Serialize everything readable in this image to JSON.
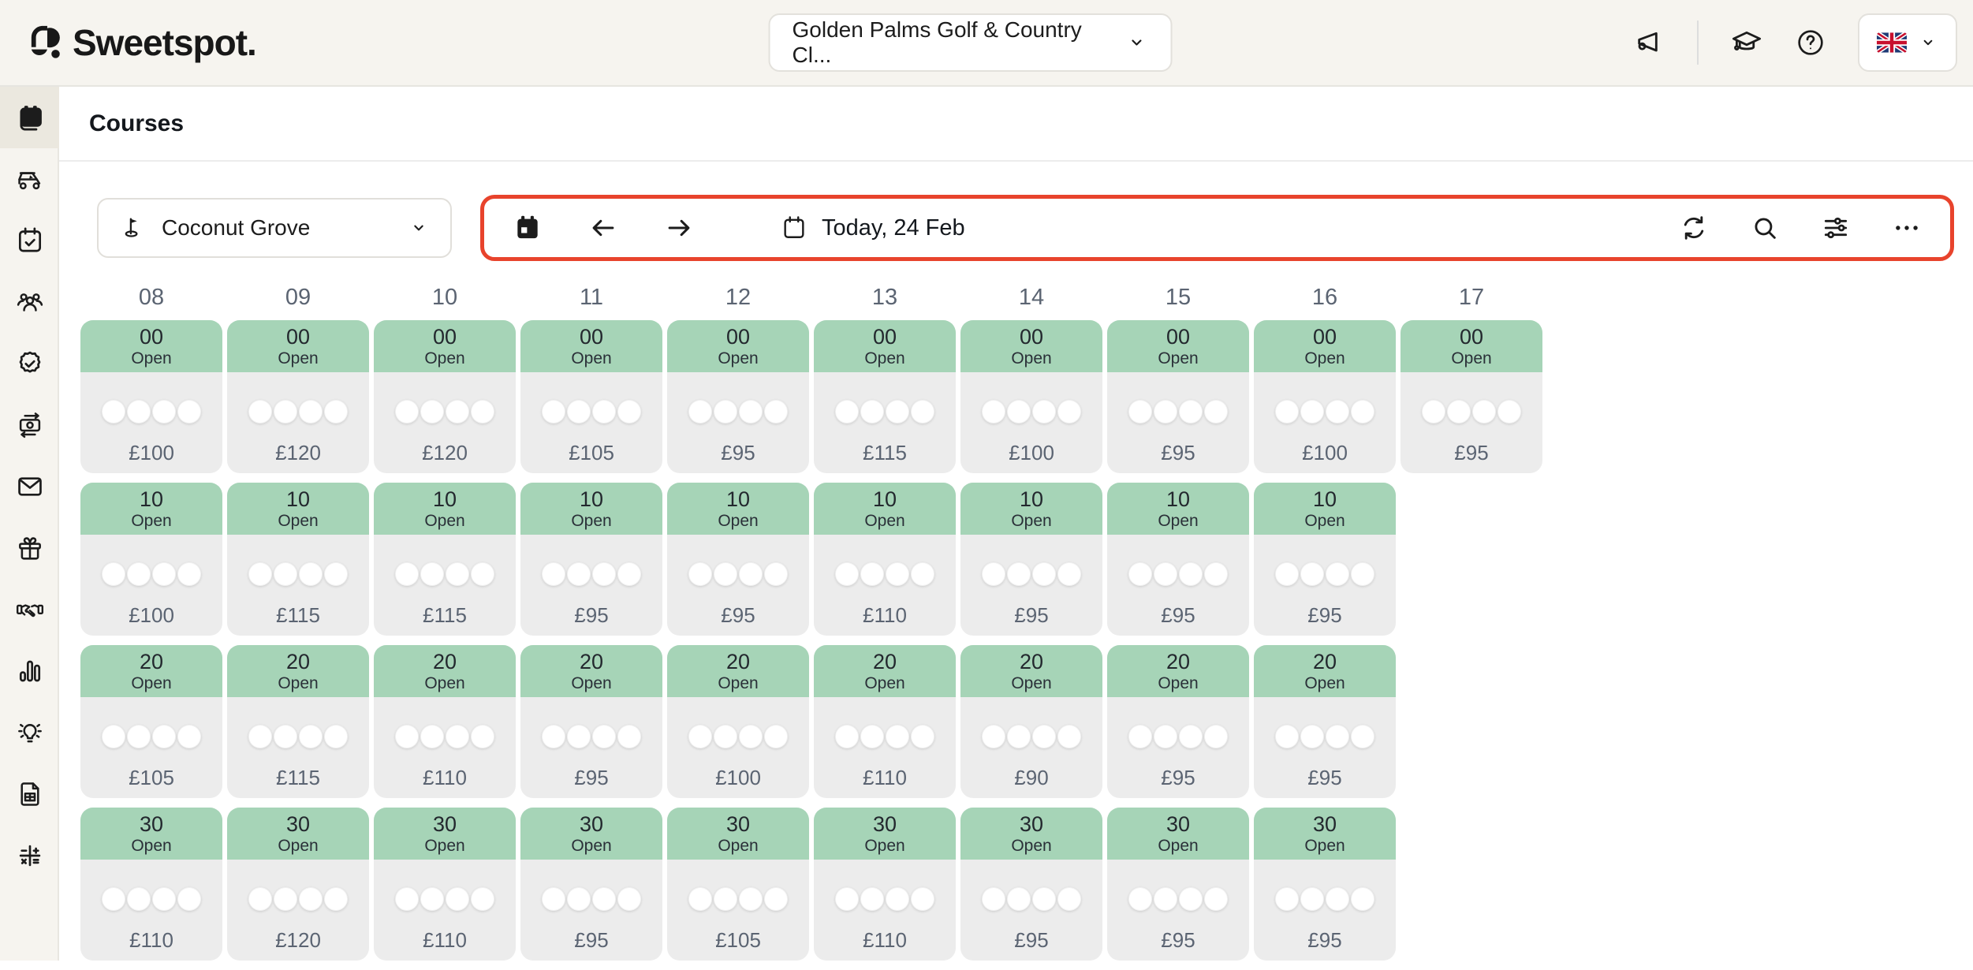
{
  "brand": {
    "logo_text": "Sweetspot."
  },
  "header": {
    "club_selector": {
      "value": "Golden Palms Golf & Country Cl..."
    },
    "icons": [
      "megaphone-icon",
      "education-icon",
      "help-icon"
    ],
    "language": {
      "flag": "united-kingdom"
    }
  },
  "sidebar": {
    "active_item": "tee-sheet",
    "items": [
      "tee-sheet-calendar-icon",
      "golf-cart-icon",
      "calendar-check-icon",
      "members-icon",
      "badge-check-icon",
      "payments-icon",
      "mail-icon",
      "gift-icon",
      "partnership-icon",
      "statistics-icon",
      "insights-icon",
      "reports-icon",
      "accounting-icon"
    ]
  },
  "page": {
    "title": "Courses"
  },
  "toolbar": {
    "course_selector": {
      "value": "Coconut Grove"
    },
    "date_label": "Today, 24 Feb",
    "right_icons": [
      "refresh-icon",
      "search-icon",
      "filters-icon",
      "more-icon"
    ],
    "highlight_color": "#e8432c"
  },
  "colors": {
    "topbar_bg": "#f6f4ef",
    "active_sidebar_bg": "#ebe8df",
    "slot_header_green": "#a6d4b7",
    "slot_body_gray": "#ececec",
    "muted_text": "#5b6472",
    "annotation_red": "#e8432c"
  },
  "tee_sheet": {
    "player_slots_per_tee": 4,
    "columns": [
      {
        "hour": "08",
        "slots": [
          {
            "minute": "00",
            "status": "Open",
            "price": "£100"
          },
          {
            "minute": "10",
            "status": "Open",
            "price": "£100"
          },
          {
            "minute": "20",
            "status": "Open",
            "price": "£105"
          },
          {
            "minute": "30",
            "status": "Open",
            "price": "£110"
          }
        ]
      },
      {
        "hour": "09",
        "slots": [
          {
            "minute": "00",
            "status": "Open",
            "price": "£120"
          },
          {
            "minute": "10",
            "status": "Open",
            "price": "£115"
          },
          {
            "minute": "20",
            "status": "Open",
            "price": "£115"
          },
          {
            "minute": "30",
            "status": "Open",
            "price": "£120"
          }
        ]
      },
      {
        "hour": "10",
        "slots": [
          {
            "minute": "00",
            "status": "Open",
            "price": "£120"
          },
          {
            "minute": "10",
            "status": "Open",
            "price": "£115"
          },
          {
            "minute": "20",
            "status": "Open",
            "price": "£110"
          },
          {
            "minute": "30",
            "status": "Open",
            "price": "£110"
          }
        ]
      },
      {
        "hour": "11",
        "slots": [
          {
            "minute": "00",
            "status": "Open",
            "price": "£105"
          },
          {
            "minute": "10",
            "status": "Open",
            "price": "£95"
          },
          {
            "minute": "20",
            "status": "Open",
            "price": "£95"
          },
          {
            "minute": "30",
            "status": "Open",
            "price": "£95"
          }
        ]
      },
      {
        "hour": "12",
        "slots": [
          {
            "minute": "00",
            "status": "Open",
            "price": "£95"
          },
          {
            "minute": "10",
            "status": "Open",
            "price": "£95"
          },
          {
            "minute": "20",
            "status": "Open",
            "price": "£100"
          },
          {
            "minute": "30",
            "status": "Open",
            "price": "£105"
          }
        ]
      },
      {
        "hour": "13",
        "slots": [
          {
            "minute": "00",
            "status": "Open",
            "price": "£115"
          },
          {
            "minute": "10",
            "status": "Open",
            "price": "£110"
          },
          {
            "minute": "20",
            "status": "Open",
            "price": "£110"
          },
          {
            "minute": "30",
            "status": "Open",
            "price": "£110"
          }
        ]
      },
      {
        "hour": "14",
        "slots": [
          {
            "minute": "00",
            "status": "Open",
            "price": "£100"
          },
          {
            "minute": "10",
            "status": "Open",
            "price": "£95"
          },
          {
            "minute": "20",
            "status": "Open",
            "price": "£90"
          },
          {
            "minute": "30",
            "status": "Open",
            "price": "£95"
          }
        ]
      },
      {
        "hour": "15",
        "slots": [
          {
            "minute": "00",
            "status": "Open",
            "price": "£95"
          },
          {
            "minute": "10",
            "status": "Open",
            "price": "£95"
          },
          {
            "minute": "20",
            "status": "Open",
            "price": "£95"
          },
          {
            "minute": "30",
            "status": "Open",
            "price": "£95"
          }
        ]
      },
      {
        "hour": "16",
        "slots": [
          {
            "minute": "00",
            "status": "Open",
            "price": "£100"
          },
          {
            "minute": "10",
            "status": "Open",
            "price": "£95"
          },
          {
            "minute": "20",
            "status": "Open",
            "price": "£95"
          },
          {
            "minute": "30",
            "status": "Open",
            "price": "£95"
          }
        ]
      },
      {
        "hour": "17",
        "slots": [
          {
            "minute": "00",
            "status": "Open",
            "price": "£95"
          }
        ]
      }
    ]
  }
}
